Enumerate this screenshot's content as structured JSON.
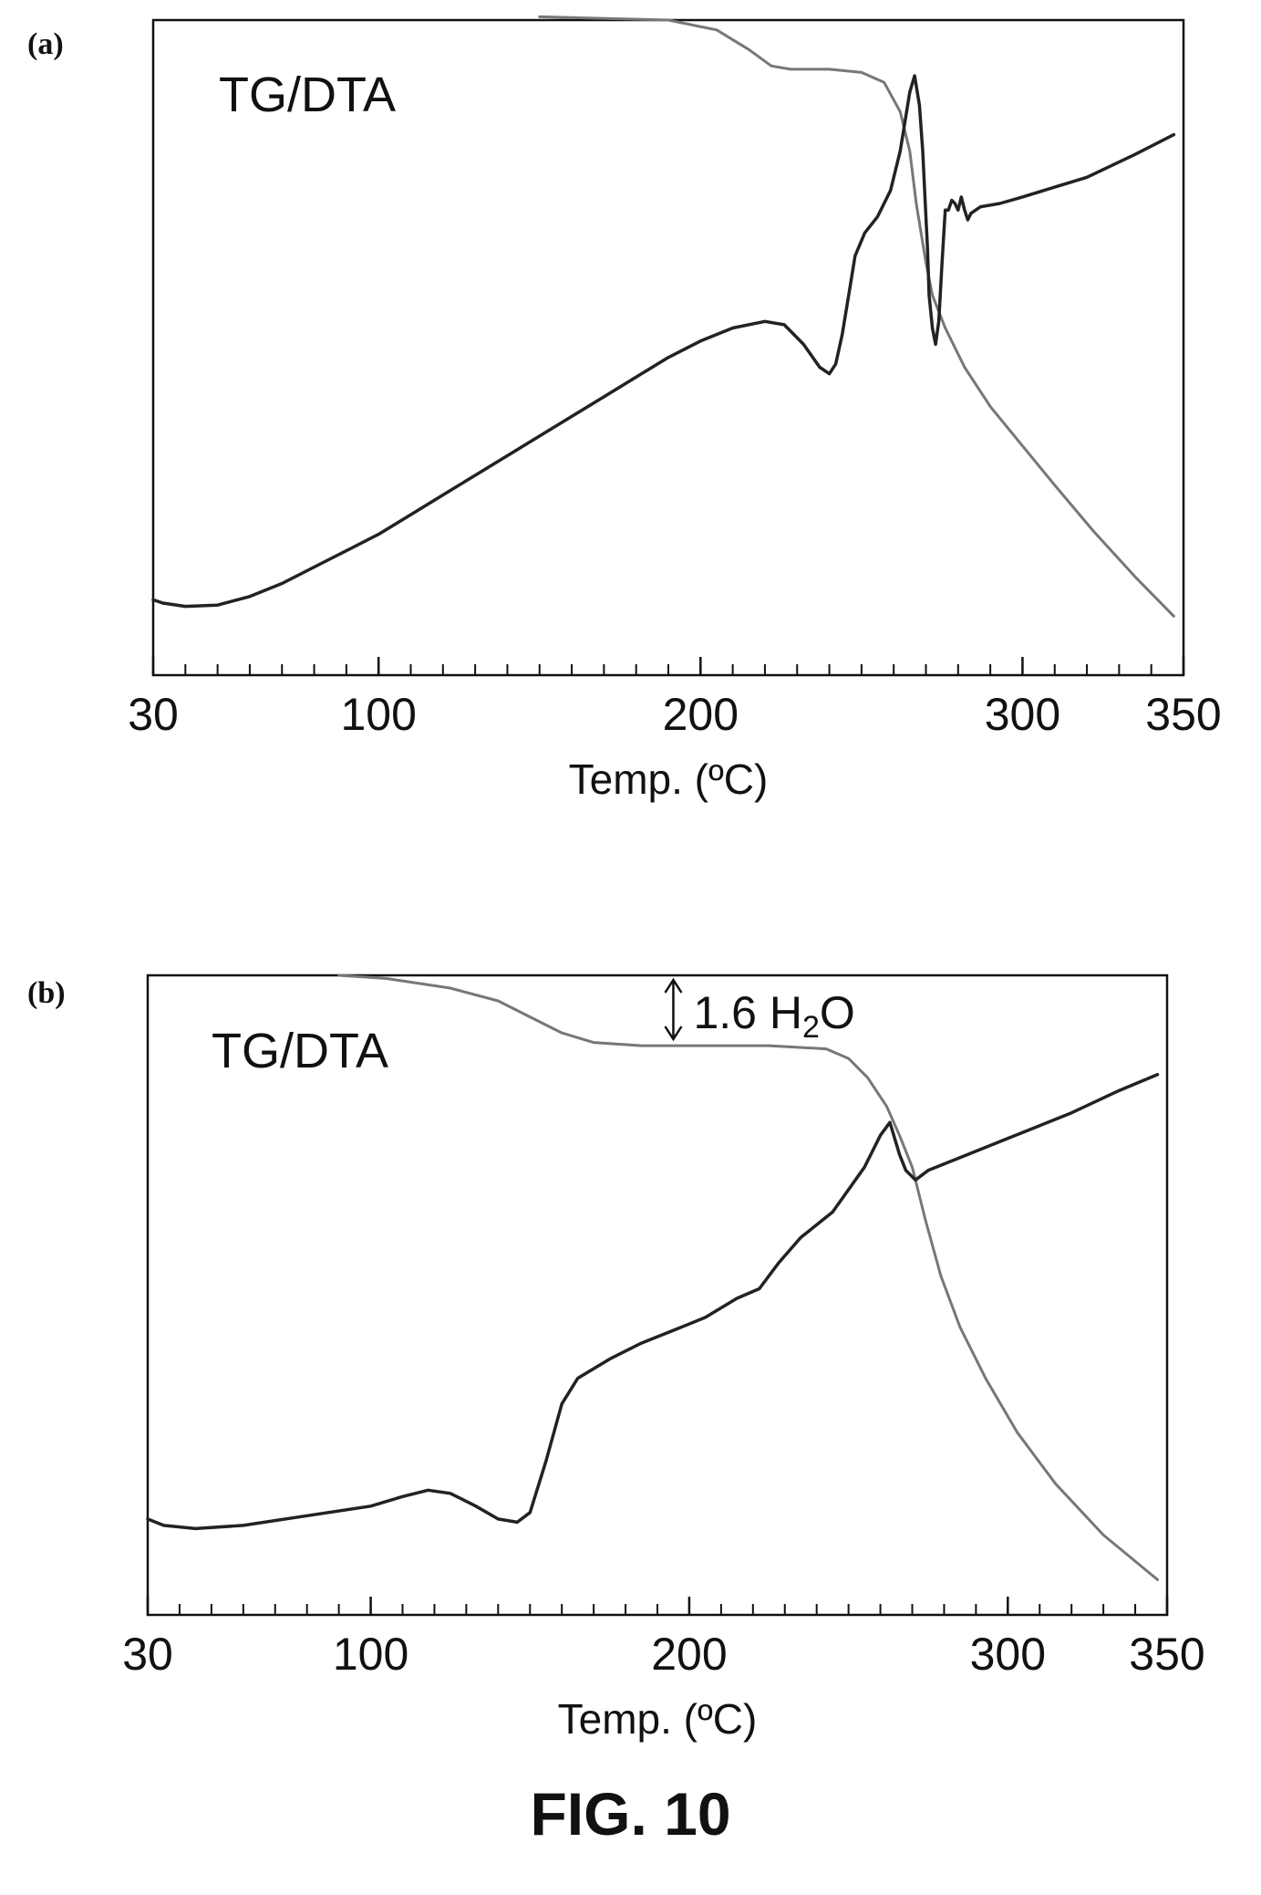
{
  "figure_caption": "FIG. 10",
  "chart_data": [
    {
      "panel_label": "(a)",
      "type": "line",
      "inner_label": "TG/DTA",
      "xlabel": "Temp. (ºC)",
      "xlim": [
        30,
        350
      ],
      "ylim": [
        0,
        100
      ],
      "y_ticks_shown": false,
      "grid": false,
      "x_ticks": [
        {
          "value": 30,
          "label": "30"
        },
        {
          "value": 100,
          "label": "100"
        },
        {
          "value": 200,
          "label": "200"
        },
        {
          "value": 300,
          "label": "300"
        },
        {
          "value": 350,
          "label": "350"
        }
      ],
      "minor_tick_step": 10,
      "series": [
        {
          "color": "#777777",
          "points": [
            [
              150,
              100.5
            ],
            [
              190,
              100
            ],
            [
              205,
              98.5
            ],
            [
              215,
              95.5
            ],
            [
              222,
              93
            ],
            [
              228,
              92.5
            ],
            [
              240,
              92.5
            ],
            [
              250,
              92
            ],
            [
              257,
              90.5
            ],
            [
              262,
              86
            ],
            [
              265,
              80
            ],
            [
              267,
              72
            ],
            [
              270,
              63
            ],
            [
              272,
              58
            ],
            [
              276,
              53
            ],
            [
              282,
              47
            ],
            [
              290,
              41
            ],
            [
              300,
              35
            ],
            [
              310,
              29
            ],
            [
              322,
              22
            ],
            [
              335,
              15
            ],
            [
              347,
              9
            ]
          ]
        },
        {
          "color": "#222222",
          "points": [
            [
              30,
              11.5
            ],
            [
              33,
              11
            ],
            [
              40,
              10.5
            ],
            [
              50,
              10.7
            ],
            [
              60,
              12
            ],
            [
              70,
              14
            ],
            [
              80,
              16.5
            ],
            [
              90,
              19
            ],
            [
              100,
              21.5
            ],
            [
              110,
              24.5
            ],
            [
              120,
              27.5
            ],
            [
              130,
              30.5
            ],
            [
              140,
              33.5
            ],
            [
              150,
              36.5
            ],
            [
              160,
              39.5
            ],
            [
              170,
              42.5
            ],
            [
              180,
              45.5
            ],
            [
              190,
              48.5
            ],
            [
              200,
              51
            ],
            [
              210,
              53
            ],
            [
              220,
              54
            ],
            [
              226,
              53.5
            ],
            [
              232,
              50.5
            ],
            [
              237,
              47
            ],
            [
              240,
              46
            ],
            [
              242,
              47.5
            ],
            [
              244,
              52
            ],
            [
              246,
              58
            ],
            [
              248,
              64
            ],
            [
              251,
              67.5
            ],
            [
              255,
              70
            ],
            [
              259,
              74
            ],
            [
              262,
              80
            ],
            [
              264,
              86
            ],
            [
              265,
              89
            ],
            [
              266.5,
              91.5
            ],
            [
              268,
              87
            ],
            [
              269,
              80
            ],
            [
              270,
              70
            ],
            [
              270.5,
              65
            ],
            [
              271,
              58
            ],
            [
              272,
              53
            ],
            [
              273,
              50.5
            ],
            [
              274,
              54
            ],
            [
              275,
              63
            ],
            [
              276,
              71
            ],
            [
              277,
              71
            ],
            [
              278,
              72.5
            ],
            [
              279,
              72
            ],
            [
              280,
              71
            ],
            [
              281,
              73
            ],
            [
              282,
              71
            ],
            [
              283,
              69.5
            ],
            [
              284,
              70.5
            ],
            [
              287,
              71.5
            ],
            [
              293,
              72
            ],
            [
              300,
              73
            ],
            [
              310,
              74.5
            ],
            [
              320,
              76
            ],
            [
              335,
              79.5
            ],
            [
              347,
              82.5
            ]
          ]
        }
      ]
    },
    {
      "panel_label": "(b)",
      "type": "line",
      "inner_label": "TG/DTA",
      "xlabel": "Temp. (ºC)",
      "xlim": [
        30,
        350
      ],
      "ylim": [
        0,
        100
      ],
      "y_ticks_shown": false,
      "grid": false,
      "x_ticks": [
        {
          "value": 30,
          "label": "30"
        },
        {
          "value": 100,
          "label": "100"
        },
        {
          "value": 200,
          "label": "200"
        },
        {
          "value": 300,
          "label": "300"
        },
        {
          "value": 350,
          "label": "350"
        }
      ],
      "minor_tick_step": 10,
      "annotation": {
        "prefix": "1.6 H",
        "subscript": "2",
        "suffix": "O",
        "x": 195
      },
      "series": [
        {
          "color": "#777777",
          "points": [
            [
              90,
              100
            ],
            [
              105,
              99.5
            ],
            [
              125,
              98
            ],
            [
              140,
              96
            ],
            [
              150,
              93.5
            ],
            [
              160,
              91
            ],
            [
              170,
              89.5
            ],
            [
              185,
              89
            ],
            [
              205,
              89
            ],
            [
              225,
              89
            ],
            [
              243,
              88.5
            ],
            [
              250,
              87
            ],
            [
              256,
              84
            ],
            [
              262,
              79.5
            ],
            [
              266,
              75
            ],
            [
              270,
              70
            ],
            [
              274,
              62
            ],
            [
              279,
              53
            ],
            [
              285,
              45
            ],
            [
              293,
              37
            ],
            [
              303,
              28.5
            ],
            [
              315,
              20.5
            ],
            [
              330,
              12.5
            ],
            [
              347,
              5.5
            ]
          ]
        },
        {
          "color": "#222222",
          "points": [
            [
              30,
              15
            ],
            [
              35,
              14
            ],
            [
              45,
              13.5
            ],
            [
              60,
              14
            ],
            [
              80,
              15.5
            ],
            [
              100,
              17
            ],
            [
              110,
              18.5
            ],
            [
              118,
              19.5
            ],
            [
              125,
              19
            ],
            [
              133,
              17
            ],
            [
              140,
              15
            ],
            [
              146,
              14.5
            ],
            [
              150,
              16
            ],
            [
              155,
              24
            ],
            [
              160,
              33
            ],
            [
              165,
              37
            ],
            [
              175,
              40
            ],
            [
              185,
              42.5
            ],
            [
              195,
              44.5
            ],
            [
              205,
              46.5
            ],
            [
              215,
              49.5
            ],
            [
              222,
              51
            ],
            [
              228,
              55
            ],
            [
              235,
              59
            ],
            [
              245,
              63
            ],
            [
              255,
              70
            ],
            [
              260,
              75
            ],
            [
              263,
              77
            ],
            [
              266,
              72
            ],
            [
              268,
              69.5
            ],
            [
              271,
              68
            ],
            [
              275,
              69.5
            ],
            [
              280,
              70.5
            ],
            [
              290,
              72.5
            ],
            [
              300,
              74.5
            ],
            [
              310,
              76.5
            ],
            [
              320,
              78.5
            ],
            [
              335,
              82
            ],
            [
              347,
              84.5
            ]
          ]
        }
      ]
    }
  ]
}
